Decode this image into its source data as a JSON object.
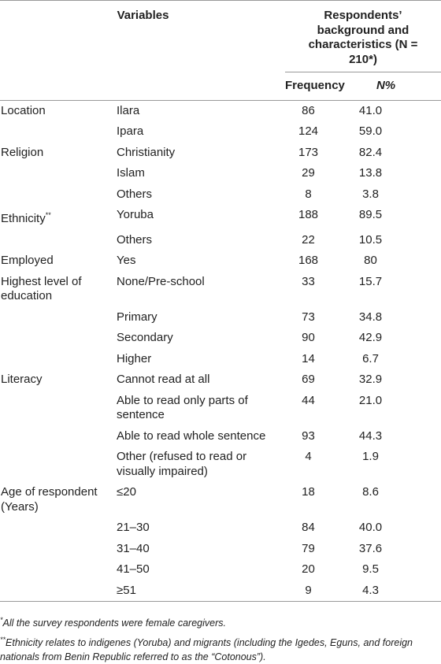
{
  "header": {
    "variables": "Variables",
    "respondents_title": "Respondents’ background and characteristics",
    "respondents_n": "(N = 210*)",
    "frequency": "Frequency",
    "percent": "N%"
  },
  "table": {
    "groups": [
      {
        "variable": "Location",
        "items": [
          {
            "category": "Ilara",
            "frequency": 86,
            "percent": "41.0"
          },
          {
            "category": "Ipara",
            "frequency": 124,
            "percent": "59.0"
          }
        ]
      },
      {
        "variable": "Religion",
        "items": [
          {
            "category": "Christianity",
            "frequency": 173,
            "percent": "82.4"
          },
          {
            "category": "Islam",
            "frequency": 29,
            "percent": "13.8"
          },
          {
            "category": "Others",
            "frequency": 8,
            "percent": "3.8"
          }
        ]
      },
      {
        "variable": "Ethnicity",
        "mark": "**",
        "items": [
          {
            "category": "Yoruba",
            "frequency": 188,
            "percent": "89.5"
          },
          {
            "category": "Others",
            "frequency": 22,
            "percent": "10.5"
          }
        ]
      },
      {
        "variable": "Employed",
        "items": [
          {
            "category": "Yes",
            "frequency": 168,
            "percent": "80"
          }
        ]
      },
      {
        "variable": "Highest level of education",
        "items": [
          {
            "category": "None/Pre-school",
            "frequency": 33,
            "percent": "15.7"
          },
          {
            "category": "Primary",
            "frequency": 73,
            "percent": "34.8"
          },
          {
            "category": "Secondary",
            "frequency": 90,
            "percent": "42.9"
          },
          {
            "category": "Higher",
            "frequency": 14,
            "percent": "6.7"
          }
        ]
      },
      {
        "variable": "Literacy",
        "items": [
          {
            "category": "Cannot read at all",
            "frequency": 69,
            "percent": "32.9"
          },
          {
            "category": "Able to read only parts of sentence",
            "frequency": 44,
            "percent": "21.0"
          },
          {
            "category": "Able to read whole sentence",
            "frequency": 93,
            "percent": "44.3"
          },
          {
            "category": "Other (refused to read or visually impaired)",
            "frequency": 4,
            "percent": "1.9"
          }
        ]
      },
      {
        "variable": "Age of respondent (Years)",
        "items": [
          {
            "category": "≤20",
            "frequency": 18,
            "percent": "8.6"
          },
          {
            "category": "21–30",
            "frequency": 84,
            "percent": "40.0"
          },
          {
            "category": "31–40",
            "frequency": 79,
            "percent": "37.6"
          },
          {
            "category": "41–50",
            "frequency": 20,
            "percent": "9.5"
          },
          {
            "category": "≥51",
            "frequency": 9,
            "percent": "4.3"
          }
        ]
      }
    ]
  },
  "footnotes": [
    {
      "mark": "*",
      "text": "All the survey respondents were female caregivers."
    },
    {
      "mark": "**",
      "text": "Ethnicity relates to indigenes (Yoruba) and migrants (including the Igedes, Eguns, and foreign nationals from Benin Republic referred to as the “Cotonous”)."
    }
  ]
}
